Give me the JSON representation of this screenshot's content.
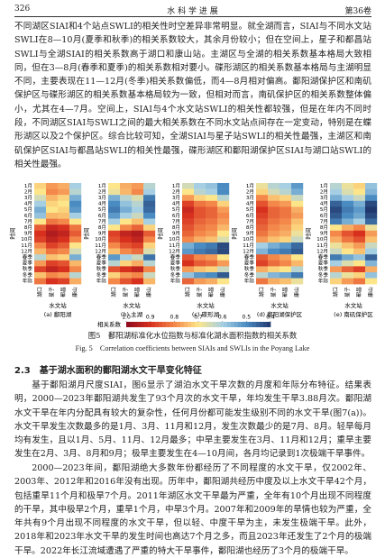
{
  "header": {
    "page": "326",
    "journal": "水 科 学 进 展",
    "volume": "第36卷"
  },
  "paragraph1": "不同湖区SIAI和4个站点SWLI的相关性时空差异非常明显。就全湖而言，SIAI与不同水文站SWLI在8—10月(夏季和秋季)的相关系数较大，其余月份较小；但在空间上，星子和都昌站SWLI与全湖SIAI的相关系数高于湖口和康山站。主湖区与全湖的相关系数基本格局大致相同，但在3—8月(春季和夏季)的相关系数相对要小。碟形湖区的相关系数基本格局与主湖明显不同，主要表现在11—12月(冬季)相关系数偏低，而4—8月相对偏高。鄱阳湖保护区和南矶保护区与碟形湖区的相关系数基本格局较为一致，但相对而言，南矶保护区的相关系数整体偏小，尤其在4—7月。空间上，SIAI与4个水文站SWLI的相关性都较强，但是在年内不同时段，不同湖区SIAI与SWLI之间的最大相关系数在不同水文站点间存在一定变动，特别是在蝶形湖区以及2个保护区。综合比较可知，全湖SIAI与星子站SWLI的相关性最强，主湖区和南矶保护区SIAI与都昌站SWLI的相关性最强，碟形湖区和鄱阳湖保护区SIAI与湖口站SWLI的相关性最强。",
  "figure": {
    "type": "heatmap",
    "y_label": "时间",
    "x_label": "水文站",
    "rows": [
      "1月",
      "2月",
      "3月",
      "4月",
      "5月",
      "6月",
      "7月",
      "8月",
      "9月",
      "10月",
      "11月",
      "12月",
      "春季",
      "夏季",
      "秋季",
      "冬季",
      "年际"
    ],
    "columns": [
      "湖口",
      "星子",
      "都昌",
      "康山"
    ],
    "panels": [
      {
        "label": "(a) 鄱阳湖",
        "values": [
          [
            0.72,
            0.78,
            0.76,
            0.6
          ],
          [
            0.7,
            0.8,
            0.78,
            0.62
          ],
          [
            0.65,
            0.75,
            0.72,
            0.55
          ],
          [
            0.6,
            0.72,
            0.7,
            0.5
          ],
          [
            0.55,
            0.7,
            0.72,
            0.52
          ],
          [
            0.58,
            0.75,
            0.74,
            0.6
          ],
          [
            0.7,
            0.82,
            0.8,
            0.7
          ],
          [
            0.85,
            0.92,
            0.9,
            0.82
          ],
          [
            0.9,
            0.95,
            0.93,
            0.85
          ],
          [
            0.88,
            0.93,
            0.9,
            0.8
          ],
          [
            0.8,
            0.88,
            0.85,
            0.7
          ],
          [
            0.75,
            0.82,
            0.8,
            0.65
          ],
          [
            0.62,
            0.74,
            0.72,
            0.55
          ],
          [
            0.78,
            0.88,
            0.86,
            0.75
          ],
          [
            0.88,
            0.93,
            0.9,
            0.8
          ],
          [
            0.74,
            0.8,
            0.78,
            0.62
          ],
          [
            0.82,
            0.9,
            0.88,
            0.76
          ]
        ]
      },
      {
        "label": "(b) 主湖",
        "values": [
          [
            0.7,
            0.76,
            0.78,
            0.62
          ],
          [
            0.68,
            0.75,
            0.8,
            0.6
          ],
          [
            0.55,
            0.62,
            0.66,
            0.48
          ],
          [
            0.5,
            0.58,
            0.62,
            0.45
          ],
          [
            0.48,
            0.55,
            0.6,
            0.46
          ],
          [
            0.52,
            0.6,
            0.64,
            0.5
          ],
          [
            0.6,
            0.7,
            0.74,
            0.6
          ],
          [
            0.7,
            0.8,
            0.84,
            0.72
          ],
          [
            0.88,
            0.93,
            0.95,
            0.85
          ],
          [
            0.86,
            0.9,
            0.93,
            0.8
          ],
          [
            0.8,
            0.86,
            0.88,
            0.72
          ],
          [
            0.74,
            0.8,
            0.83,
            0.66
          ],
          [
            0.52,
            0.6,
            0.64,
            0.47
          ],
          [
            0.62,
            0.72,
            0.76,
            0.62
          ],
          [
            0.86,
            0.9,
            0.93,
            0.8
          ],
          [
            0.72,
            0.78,
            0.8,
            0.64
          ],
          [
            0.8,
            0.86,
            0.9,
            0.75
          ]
        ]
      },
      {
        "label": "(c) 碟形湖",
        "values": [
          [
            0.65,
            0.6,
            0.58,
            0.5
          ],
          [
            0.7,
            0.62,
            0.6,
            0.5
          ],
          [
            0.78,
            0.72,
            0.7,
            0.62
          ],
          [
            0.88,
            0.82,
            0.8,
            0.72
          ],
          [
            0.92,
            0.86,
            0.84,
            0.78
          ],
          [
            0.9,
            0.86,
            0.84,
            0.8
          ],
          [
            0.88,
            0.84,
            0.82,
            0.78
          ],
          [
            0.86,
            0.82,
            0.8,
            0.75
          ],
          [
            0.84,
            0.8,
            0.78,
            0.7
          ],
          [
            0.8,
            0.76,
            0.74,
            0.66
          ],
          [
            0.55,
            0.5,
            0.48,
            0.42
          ],
          [
            0.52,
            0.48,
            0.46,
            0.42
          ],
          [
            0.86,
            0.8,
            0.78,
            0.7
          ],
          [
            0.9,
            0.85,
            0.83,
            0.78
          ],
          [
            0.78,
            0.74,
            0.72,
            0.64
          ],
          [
            0.58,
            0.52,
            0.5,
            0.44
          ],
          [
            0.84,
            0.78,
            0.76,
            0.7
          ]
        ]
      },
      {
        "label": "(d) 鄱阳湖保护区",
        "values": [
          [
            0.68,
            0.62,
            0.6,
            0.52
          ],
          [
            0.72,
            0.65,
            0.62,
            0.55
          ],
          [
            0.8,
            0.74,
            0.72,
            0.64
          ],
          [
            0.86,
            0.8,
            0.78,
            0.7
          ],
          [
            0.9,
            0.84,
            0.82,
            0.76
          ],
          [
            0.88,
            0.84,
            0.82,
            0.78
          ],
          [
            0.86,
            0.82,
            0.8,
            0.74
          ],
          [
            0.84,
            0.8,
            0.78,
            0.72
          ],
          [
            0.82,
            0.78,
            0.76,
            0.68
          ],
          [
            0.78,
            0.74,
            0.72,
            0.64
          ],
          [
            0.6,
            0.55,
            0.52,
            0.46
          ],
          [
            0.56,
            0.5,
            0.48,
            0.44
          ],
          [
            0.85,
            0.8,
            0.77,
            0.7
          ],
          [
            0.88,
            0.83,
            0.8,
            0.75
          ],
          [
            0.76,
            0.72,
            0.7,
            0.62
          ],
          [
            0.62,
            0.56,
            0.54,
            0.48
          ],
          [
            0.82,
            0.76,
            0.74,
            0.68
          ]
        ]
      },
      {
        "label": "(e) 南矶保护区",
        "values": [
          [
            0.62,
            0.68,
            0.72,
            0.58
          ],
          [
            0.6,
            0.66,
            0.7,
            0.56
          ],
          [
            0.55,
            0.6,
            0.64,
            0.5
          ],
          [
            0.45,
            0.5,
            0.55,
            0.42
          ],
          [
            0.42,
            0.48,
            0.52,
            0.4
          ],
          [
            0.44,
            0.5,
            0.54,
            0.42
          ],
          [
            0.48,
            0.55,
            0.6,
            0.46
          ],
          [
            0.7,
            0.76,
            0.8,
            0.68
          ],
          [
            0.8,
            0.86,
            0.9,
            0.78
          ],
          [
            0.76,
            0.82,
            0.86,
            0.74
          ],
          [
            0.68,
            0.74,
            0.78,
            0.64
          ],
          [
            0.64,
            0.7,
            0.74,
            0.6
          ],
          [
            0.48,
            0.54,
            0.58,
            0.45
          ],
          [
            0.6,
            0.66,
            0.7,
            0.56
          ],
          [
            0.78,
            0.84,
            0.88,
            0.76
          ],
          [
            0.62,
            0.68,
            0.72,
            0.58
          ],
          [
            0.72,
            0.78,
            0.82,
            0.7
          ]
        ]
      }
    ],
    "colorbar": {
      "label": "相关系数",
      "ticks": [
        {
          "value": 1,
          "label": "1.0"
        },
        0.9,
        0.8,
        0.7,
        0.6,
        0.5,
        0.4
      ],
      "colors": [
        "#8b0a1e",
        "#d7301f",
        "#f4874a",
        "#fde68a",
        "#a6cfe3",
        "#4a8cc2",
        "#21386e"
      ]
    }
  },
  "caption_cn": "图5　鄱阳湖标准化水位指数与标准化湖水面积指数的相关系数",
  "caption_en": "Fig. 5　Correlation coefficients between SIAIs and SWLIs in the Poyang Lake",
  "section_heading": "2.3　基于湖水面积的鄱阳湖水文干旱变化特征",
  "paragraph2": "基于鄱阳湖月尺度SIAI，图6显示了湖泊水文干旱次数的月度和年际分布特征。结果表明，2000—2023年鄱阳湖共发生了93个月次的水文干旱，年均发生干旱3.88月次。鄱阳湖水文干旱在年内分配具有较大的复杂性，任何月份都可能发生级别不同的水文干旱(图7(a))。水文干旱发生次数最多的是1月、3月、11月和12月，发生次数最少的是7月、8月。轻旱每月均有发生，且以1月、5月、11月、12月最多；中旱主要发生在3月、11月和12月；重旱主要发生在2月、3月、8月和9月；极旱主要发生在4—10月间，各月均记录到1次极端干旱事件。",
  "paragraph3": "2000—2023年间，鄱阳湖绝大多数年份都经历了不同程度的水文干旱，仅2002年、2003年、2012年和2016年没有出现。历年中，鄱阳湖共经历中度及以上水文干旱42个月，包括重旱11个月和极旱7个月。2011年湖区水文干旱最为严重，全年有10个月出现不同程度的干旱，其中极旱2个月，重旱1个月，中旱3个月。2007年和2009年的旱情也较为严重，全年共有9个月出现不同程度的水文干旱，但以轻、中度干旱为主，未发生极端干旱。此外，2018年和2023年水文干旱的发生时间也高达7个月之多，而且2023年还发生了2个月的极端干旱。2022年长江流域遭遇了严重的特大干旱事件，鄱阳湖也经历了3个月的极端干旱。"
}
